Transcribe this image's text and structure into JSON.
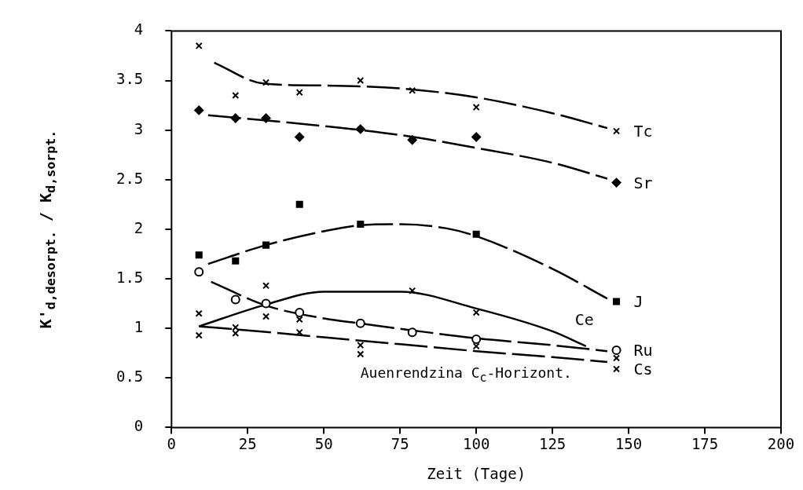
{
  "chart_data": {
    "type": "scatter",
    "xlabel": "Zeit (Tage)",
    "ylabel": "K'$_{d,desorpt.}$ / K$_{d,sorpt.}$",
    "annotations": [
      "Auenrendzina C$_{c}$-Horizont."
    ],
    "xlim": [
      0,
      200
    ],
    "xticks": [
      0,
      25,
      50,
      75,
      100,
      125,
      150,
      175,
      200
    ],
    "ylim": [
      0,
      4
    ],
    "yticks": [
      0,
      0.5,
      1,
      1.5,
      2,
      2.5,
      3,
      3.5,
      4
    ],
    "grid": false,
    "legend": false,
    "series": [
      {
        "name": "Tc",
        "marker": "cross",
        "color": "#000000",
        "x": [
          9,
          21,
          31,
          42,
          62,
          79,
          100,
          146
        ],
        "values": [
          3.85,
          3.35,
          3.48,
          3.38,
          3.5,
          3.4,
          3.23,
          2.99
        ]
      },
      {
        "name": "Sr",
        "marker": "diamond",
        "color": "#000000",
        "x": [
          9,
          21,
          31,
          42,
          62,
          79,
          100,
          146
        ],
        "values": [
          3.2,
          3.12,
          3.12,
          2.93,
          3.01,
          2.9,
          2.93,
          2.47
        ]
      },
      {
        "name": "J",
        "marker": "square",
        "color": "#000000",
        "x": [
          9,
          21,
          31,
          42,
          62,
          79,
          100,
          146
        ],
        "values": [
          1.74,
          1.68,
          1.84,
          2.25,
          2.05,
          null,
          1.95,
          1.27
        ]
      },
      {
        "marker": "cross",
        "color": "#000000",
        "x": [
          9,
          21,
          31,
          42,
          62,
          79,
          100,
          146
        ],
        "values": [
          1.15,
          1.01,
          1.43,
          1.09,
          0.83,
          1.38,
          1.16,
          0.7
        ]
      },
      {
        "name": "Ru",
        "marker": "circle",
        "color": "#000000",
        "x": [
          9,
          21,
          31,
          42,
          62,
          79,
          100,
          146
        ],
        "values": [
          1.57,
          1.29,
          1.25,
          1.16,
          1.05,
          0.96,
          0.89,
          0.78
        ]
      },
      {
        "name": "Cs",
        "marker": "cross",
        "color": "#000000",
        "x": [
          9,
          21,
          31,
          42,
          62,
          79,
          100,
          146
        ],
        "values": [
          0.93,
          0.95,
          1.12,
          0.96,
          0.74,
          null,
          0.82,
          0.59
        ]
      },
      {
        "type": "line",
        "line_style": "dashed",
        "color": "#000000",
        "x": [
          14,
          30,
          50,
          75,
          100,
          125,
          143
        ],
        "values": [
          3.68,
          3.47,
          3.45,
          3.42,
          3.33,
          3.17,
          3.02
        ]
      },
      {
        "type": "line",
        "line_style": "dashed",
        "color": "#000000",
        "x": [
          12,
          50,
          75,
          100,
          125,
          143
        ],
        "values": [
          3.15,
          3.04,
          2.95,
          2.82,
          2.67,
          2.51
        ]
      },
      {
        "type": "line",
        "line_style": "dashed",
        "color": "#000000",
        "x": [
          12,
          31,
          50,
          62,
          75,
          90,
          100,
          125,
          143
        ],
        "values": [
          1.65,
          1.84,
          1.98,
          2.04,
          2.05,
          2.01,
          1.93,
          1.6,
          1.3
        ]
      },
      {
        "name": "Ce",
        "type": "line",
        "line_style": "solid",
        "color": "#000000",
        "x": [
          9,
          31,
          50,
          75,
          100,
          125,
          136
        ],
        "values": [
          1.02,
          1.24,
          1.37,
          1.37,
          1.2,
          0.97,
          0.82
        ]
      },
      {
        "type": "line",
        "line_style": "dashed",
        "color": "#000000",
        "x": [
          13,
          31,
          50,
          62,
          79,
          100,
          125,
          143
        ],
        "values": [
          1.47,
          1.23,
          1.1,
          1.05,
          0.98,
          0.9,
          0.83,
          0.77
        ]
      },
      {
        "type": "line",
        "line_style": "dashed",
        "color": "#000000",
        "x": [
          9,
          25,
          50,
          75,
          100,
          125,
          143
        ],
        "values": [
          1.02,
          0.98,
          0.91,
          0.84,
          0.77,
          0.71,
          0.66
        ]
      }
    ]
  }
}
